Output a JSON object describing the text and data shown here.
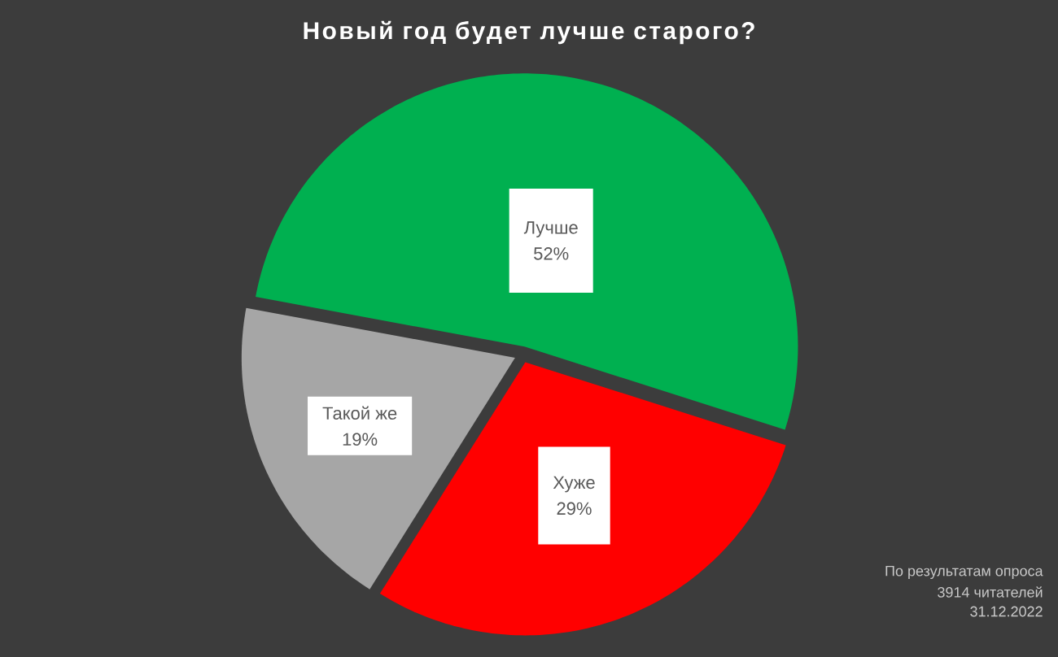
{
  "chart_data": {
    "type": "pie",
    "title": "Новый год будет лучше старого?",
    "categories": [
      "Лучше",
      "Хуже",
      "Такой же"
    ],
    "values": [
      52,
      29,
      19
    ],
    "colors": [
      "#00b050",
      "#ff0000",
      "#a6a6a6"
    ],
    "value_labels": [
      "52%",
      "29%",
      "19%"
    ],
    "annotations": [
      "По результатам опроса",
      "3914 читателей",
      "31.12.2022"
    ]
  }
}
